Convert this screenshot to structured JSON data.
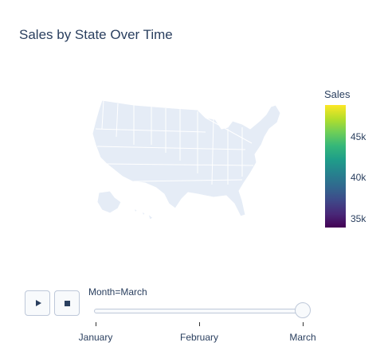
{
  "chart_data": {
    "type": "choropleth",
    "title": "Sales by State Over Time",
    "colorbar": {
      "title": "Sales",
      "range": [
        34000,
        49000
      ],
      "ticks": [
        35000,
        40000,
        45000
      ],
      "tick_labels": [
        "35k",
        "40k",
        "45k"
      ],
      "colorscale": "Viridis",
      "colors": [
        "#440154",
        "#482878",
        "#3e4989",
        "#31688e",
        "#26828e",
        "#1f9e89",
        "#35b779",
        "#6ece58",
        "#b5de2b",
        "#fde725"
      ]
    },
    "geo_scope": "usa",
    "map_fill": "#e5ecf6",
    "map_border": "#ffffff"
  },
  "animation": {
    "frame_label": "Month=March",
    "frames": [
      "January",
      "February",
      "March"
    ],
    "current_index": 2
  }
}
